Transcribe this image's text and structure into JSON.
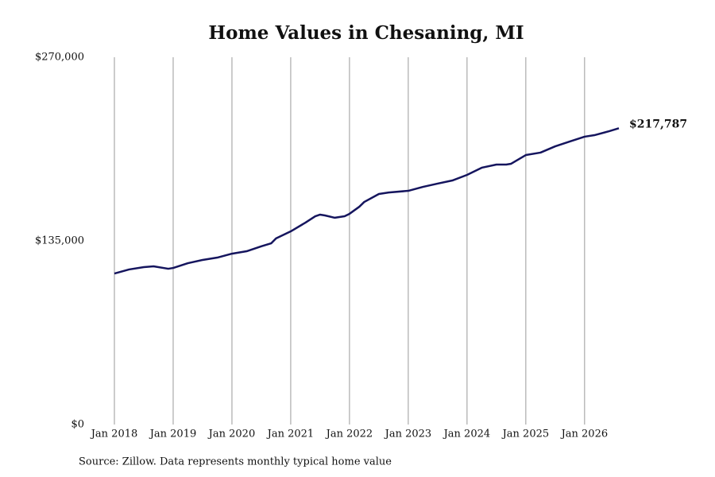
{
  "chart_data": {
    "type": "line",
    "title": "Home Values in Chesaning, MI",
    "source": "Source: Zillow. Data represents monthly typical home value",
    "x": [
      "2018-01",
      "2018-04",
      "2018-07",
      "2018-09",
      "2018-12",
      "2019-01",
      "2019-04",
      "2019-07",
      "2019-10",
      "2020-01",
      "2020-04",
      "2020-07",
      "2020-09",
      "2020-10",
      "2021-01",
      "2021-04",
      "2021-06",
      "2021-07",
      "2021-08",
      "2021-10",
      "2021-12",
      "2022-01",
      "2022-03",
      "2022-04",
      "2022-07",
      "2022-09",
      "2023-01",
      "2023-04",
      "2023-07",
      "2023-10",
      "2024-01",
      "2024-04",
      "2024-07",
      "2024-09",
      "2024-10",
      "2025-01",
      "2025-04",
      "2025-07",
      "2025-10",
      "2026-01",
      "2026-03",
      "2026-06",
      "2026-08"
    ],
    "series": [
      {
        "name": "Home value",
        "color": "#15155e",
        "values": [
          111000,
          114000,
          115700,
          116300,
          114500,
          115100,
          118600,
          121000,
          122700,
          125600,
          127400,
          131000,
          133200,
          136800,
          142000,
          148400,
          153100,
          154300,
          153700,
          152000,
          153100,
          154900,
          160100,
          163600,
          169500,
          170600,
          171800,
          174700,
          177100,
          179400,
          183500,
          188800,
          191100,
          191100,
          191700,
          198100,
          199900,
          204500,
          208100,
          211600,
          212700,
          215600,
          217787
        ],
        "value_labels": [
          null,
          null,
          null,
          null,
          null,
          null,
          null,
          null,
          null,
          null,
          null,
          null,
          null,
          null,
          null,
          null,
          null,
          null,
          null,
          null,
          null,
          null,
          null,
          null,
          null,
          null,
          null,
          null,
          null,
          null,
          null,
          null,
          null,
          null,
          null,
          null,
          null,
          null,
          null,
          null,
          null,
          null,
          "$217,787"
        ]
      }
    ],
    "xlim": [
      "2018-01",
      "2026-08"
    ],
    "xticks": [
      {
        "value": "2018-01",
        "label": "Jan 2018"
      },
      {
        "value": "2019-01",
        "label": "Jan 2019"
      },
      {
        "value": "2020-01",
        "label": "Jan 2020"
      },
      {
        "value": "2021-01",
        "label": "Jan 2021"
      },
      {
        "value": "2022-01",
        "label": "Jan 2022"
      },
      {
        "value": "2023-01",
        "label": "Jan 2023"
      },
      {
        "value": "2024-01",
        "label": "Jan 2024"
      },
      {
        "value": "2025-01",
        "label": "Jan 2025"
      },
      {
        "value": "2026-01",
        "label": "Jan 2026"
      }
    ],
    "ylim": [
      0,
      270000
    ],
    "yticks": [
      {
        "value": 0,
        "label": "$0"
      },
      {
        "value": 135000,
        "label": "$135,000"
      },
      {
        "value": 270000,
        "label": "$270,000"
      }
    ],
    "grid": "x"
  }
}
